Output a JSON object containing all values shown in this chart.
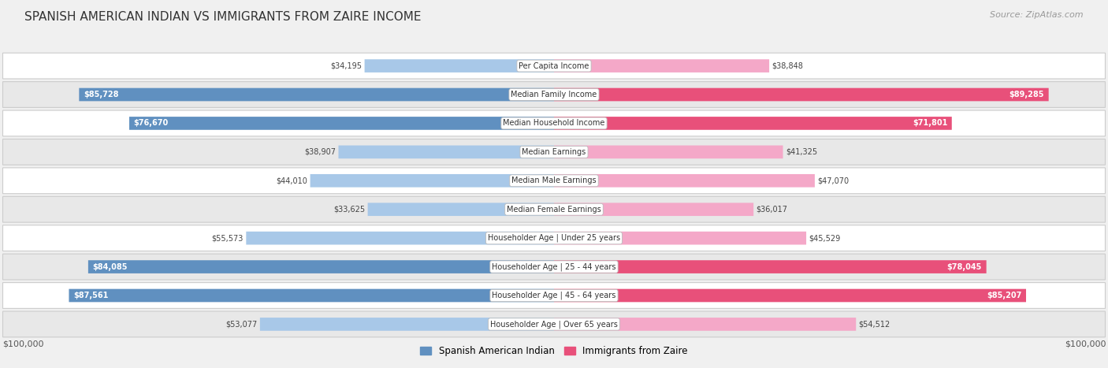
{
  "title": "SPANISH AMERICAN INDIAN VS IMMIGRANTS FROM ZAIRE INCOME",
  "source": "Source: ZipAtlas.com",
  "categories": [
    "Per Capita Income",
    "Median Family Income",
    "Median Household Income",
    "Median Earnings",
    "Median Male Earnings",
    "Median Female Earnings",
    "Householder Age | Under 25 years",
    "Householder Age | 25 - 44 years",
    "Householder Age | 45 - 64 years",
    "Householder Age | Over 65 years"
  ],
  "left_values": [
    34195,
    85728,
    76670,
    38907,
    44010,
    33625,
    55573,
    84085,
    87561,
    53077
  ],
  "right_values": [
    38848,
    89285,
    71801,
    41325,
    47070,
    36017,
    45529,
    78045,
    85207,
    54512
  ],
  "left_labels": [
    "$34,195",
    "$85,728",
    "$76,670",
    "$38,907",
    "$44,010",
    "$33,625",
    "$55,573",
    "$84,085",
    "$87,561",
    "$53,077"
  ],
  "right_labels": [
    "$38,848",
    "$89,285",
    "$71,801",
    "$41,325",
    "$47,070",
    "$36,017",
    "$45,529",
    "$78,045",
    "$85,207",
    "$54,512"
  ],
  "left_color_light": "#a8c8e8",
  "right_color_light": "#f4a8c8",
  "left_color_dark": "#6090c0",
  "right_color_dark": "#e8507a",
  "left_label_inside": [
    false,
    true,
    true,
    false,
    false,
    false,
    false,
    true,
    true,
    false
  ],
  "right_label_inside": [
    false,
    true,
    true,
    false,
    false,
    false,
    false,
    true,
    true,
    false
  ],
  "legend_left": "Spanish American Indian",
  "legend_right": "Immigrants from Zaire",
  "max_value": 100000,
  "xlabel_left": "$100,000",
  "xlabel_right": "$100,000",
  "bg_color": "#f0f0f0",
  "row_light": "#ffffff",
  "row_dark": "#e8e8e8"
}
